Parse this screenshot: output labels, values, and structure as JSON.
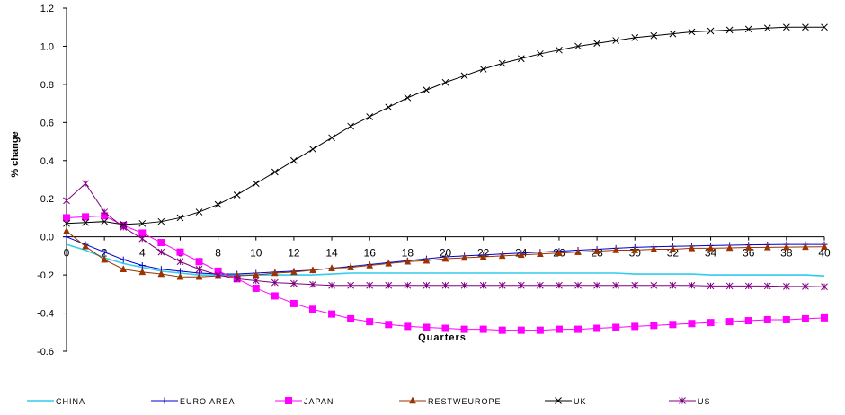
{
  "chart_data": {
    "type": "line",
    "title": "",
    "xlabel": "Quarters",
    "ylabel": "% change",
    "xlim": [
      0,
      40
    ],
    "ylim": [
      -0.6,
      1.2
    ],
    "x_ticks": [
      0,
      2,
      4,
      6,
      8,
      10,
      12,
      14,
      16,
      18,
      20,
      22,
      24,
      26,
      28,
      30,
      32,
      34,
      36,
      38,
      40
    ],
    "y_ticks": [
      -0.6,
      -0.4,
      -0.2,
      0.0,
      0.2,
      0.4,
      0.6,
      0.8,
      1.0,
      1.2
    ],
    "y_tick_labels": [
      "-0.6",
      "-0.4",
      "-0.2",
      "0.0",
      "0.2",
      "0.4",
      "0.6",
      "0.8",
      "1.0",
      "1.2"
    ],
    "grid": false,
    "legend_position": "bottom",
    "x": [
      0,
      1,
      2,
      3,
      4,
      5,
      6,
      7,
      8,
      9,
      10,
      11,
      12,
      13,
      14,
      15,
      16,
      17,
      18,
      19,
      20,
      21,
      22,
      23,
      24,
      25,
      26,
      27,
      28,
      29,
      30,
      31,
      32,
      33,
      34,
      35,
      36,
      37,
      38,
      39,
      40
    ],
    "series": [
      {
        "name": "CHINA",
        "color": "#33CCEE",
        "marker": "none",
        "values": [
          -0.04,
          -0.07,
          -0.11,
          -0.14,
          -0.16,
          -0.18,
          -0.19,
          -0.2,
          -0.2,
          -0.2,
          -0.2,
          -0.2,
          -0.2,
          -0.2,
          -0.195,
          -0.19,
          -0.19,
          -0.19,
          -0.19,
          -0.19,
          -0.19,
          -0.19,
          -0.19,
          -0.19,
          -0.19,
          -0.19,
          -0.19,
          -0.19,
          -0.19,
          -0.19,
          -0.195,
          -0.195,
          -0.195,
          -0.195,
          -0.2,
          -0.2,
          -0.2,
          -0.2,
          -0.2,
          -0.2,
          -0.205
        ]
      },
      {
        "name": "EURO AREA",
        "color": "#0000CC",
        "marker": "plus",
        "values": [
          0.0,
          -0.04,
          -0.08,
          -0.12,
          -0.15,
          -0.17,
          -0.18,
          -0.19,
          -0.195,
          -0.195,
          -0.19,
          -0.185,
          -0.18,
          -0.175,
          -0.165,
          -0.155,
          -0.145,
          -0.135,
          -0.125,
          -0.115,
          -0.105,
          -0.1,
          -0.095,
          -0.09,
          -0.085,
          -0.08,
          -0.075,
          -0.07,
          -0.065,
          -0.06,
          -0.055,
          -0.052,
          -0.05,
          -0.048,
          -0.046,
          -0.044,
          -0.042,
          -0.041,
          -0.04,
          -0.04,
          -0.04
        ]
      },
      {
        "name": "JAPAN",
        "color": "#FF00FF",
        "marker": "square",
        "values": [
          0.1,
          0.105,
          0.11,
          0.06,
          0.02,
          -0.03,
          -0.08,
          -0.13,
          -0.18,
          -0.22,
          -0.27,
          -0.31,
          -0.35,
          -0.38,
          -0.405,
          -0.43,
          -0.445,
          -0.46,
          -0.47,
          -0.475,
          -0.48,
          -0.485,
          -0.485,
          -0.49,
          -0.49,
          -0.49,
          -0.485,
          -0.485,
          -0.48,
          -0.475,
          -0.47,
          -0.465,
          -0.46,
          -0.455,
          -0.45,
          -0.445,
          -0.44,
          -0.435,
          -0.435,
          -0.43,
          -0.425
        ]
      },
      {
        "name": "RESTWEUROPE",
        "color": "#993300",
        "marker": "triangle",
        "values": [
          0.03,
          -0.05,
          -0.12,
          -0.17,
          -0.185,
          -0.195,
          -0.21,
          -0.21,
          -0.205,
          -0.205,
          -0.2,
          -0.19,
          -0.185,
          -0.175,
          -0.165,
          -0.16,
          -0.15,
          -0.14,
          -0.13,
          -0.125,
          -0.115,
          -0.11,
          -0.105,
          -0.1,
          -0.095,
          -0.09,
          -0.085,
          -0.08,
          -0.075,
          -0.07,
          -0.07,
          -0.065,
          -0.065,
          -0.06,
          -0.06,
          -0.058,
          -0.056,
          -0.055,
          -0.054,
          -0.053,
          -0.052
        ]
      },
      {
        "name": "UK",
        "color": "#000000",
        "marker": "x",
        "values": [
          0.07,
          0.075,
          0.08,
          0.065,
          0.07,
          0.08,
          0.1,
          0.13,
          0.17,
          0.22,
          0.28,
          0.34,
          0.4,
          0.46,
          0.52,
          0.58,
          0.63,
          0.68,
          0.73,
          0.77,
          0.81,
          0.845,
          0.88,
          0.91,
          0.935,
          0.96,
          0.98,
          1.0,
          1.015,
          1.03,
          1.045,
          1.055,
          1.065,
          1.075,
          1.08,
          1.085,
          1.09,
          1.095,
          1.1,
          1.1,
          1.1
        ]
      },
      {
        "name": "US",
        "color": "#800080",
        "marker": "asterisk",
        "values": [
          0.19,
          0.28,
          0.13,
          0.05,
          -0.01,
          -0.08,
          -0.13,
          -0.17,
          -0.2,
          -0.22,
          -0.23,
          -0.24,
          -0.245,
          -0.25,
          -0.255,
          -0.255,
          -0.255,
          -0.255,
          -0.255,
          -0.255,
          -0.255,
          -0.255,
          -0.255,
          -0.255,
          -0.255,
          -0.255,
          -0.255,
          -0.255,
          -0.255,
          -0.255,
          -0.255,
          -0.255,
          -0.255,
          -0.255,
          -0.258,
          -0.258,
          -0.258,
          -0.258,
          -0.26,
          -0.26,
          -0.262
        ]
      }
    ]
  }
}
